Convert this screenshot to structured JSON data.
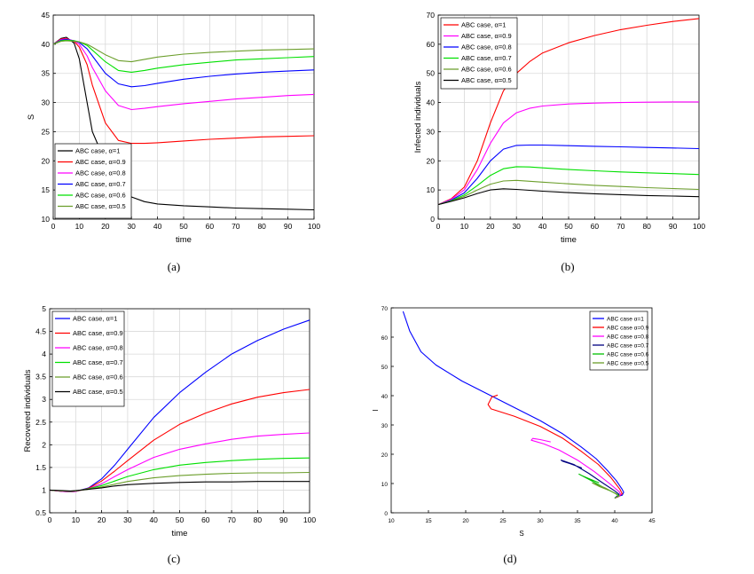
{
  "figure": {
    "panels": [
      {
        "label": "(a)"
      },
      {
        "label": "(b)"
      },
      {
        "label": "(c)"
      },
      {
        "label": "(d)"
      }
    ]
  },
  "chart_data": [
    {
      "type": "line",
      "title": "",
      "xlabel": "time",
      "ylabel": "S",
      "xlim": [
        0,
        100
      ],
      "ylim": [
        10,
        45
      ],
      "xticks": [
        0,
        10,
        20,
        30,
        40,
        50,
        60,
        70,
        80,
        90,
        100
      ],
      "yticks": [
        10,
        15,
        20,
        25,
        30,
        35,
        40,
        45
      ],
      "grid": true,
      "legend_position": "bottom-left",
      "x": [
        0,
        3,
        5,
        8,
        10,
        13,
        15,
        20,
        25,
        30,
        35,
        40,
        50,
        60,
        70,
        80,
        90,
        100
      ],
      "series": [
        {
          "name": "ABC case, α=1",
          "color": "#000000",
          "values": [
            40,
            41,
            41.2,
            40.2,
            37.5,
            30,
            25,
            19.8,
            15.5,
            13.8,
            13,
            12.6,
            12.3,
            12.1,
            11.9,
            11.8,
            11.7,
            11.6
          ]
        },
        {
          "name": "ABC case, α=0.9",
          "color": "#ff0000",
          "values": [
            40,
            40.9,
            41,
            40.5,
            39.5,
            36.5,
            33,
            26.5,
            23.5,
            23,
            23,
            23.1,
            23.4,
            23.7,
            23.9,
            24.1,
            24.2,
            24.3
          ]
        },
        {
          "name": "ABC case, α=0.8",
          "color": "#ff00ff",
          "values": [
            40,
            40.8,
            40.9,
            40.6,
            40,
            38,
            36,
            32,
            29.5,
            28.8,
            29,
            29.3,
            29.8,
            30.2,
            30.6,
            30.9,
            31.2,
            31.4
          ]
        },
        {
          "name": "ABC case, α=0.7",
          "color": "#0000ff",
          "values": [
            40,
            40.7,
            40.8,
            40.6,
            40.3,
            39.2,
            38,
            35,
            33.2,
            32.7,
            32.9,
            33.3,
            34,
            34.5,
            34.9,
            35.2,
            35.4,
            35.6
          ]
        },
        {
          "name": "ABC case, α=0.6",
          "color": "#00e000",
          "values": [
            40,
            40.6,
            40.7,
            40.6,
            40.4,
            39.8,
            39,
            37,
            35.5,
            35.2,
            35.5,
            35.9,
            36.5,
            36.9,
            37.3,
            37.5,
            37.7,
            37.9
          ]
        },
        {
          "name": "ABC case, α=0.5",
          "color": "#6b9e2b",
          "values": [
            40,
            40.5,
            40.6,
            40.5,
            40.4,
            40,
            39.5,
            38.2,
            37.2,
            37,
            37.4,
            37.8,
            38.3,
            38.6,
            38.8,
            39,
            39.1,
            39.2
          ]
        }
      ]
    },
    {
      "type": "line",
      "title": "",
      "xlabel": "time",
      "ylabel": "Infected individuals",
      "xlim": [
        0,
        100
      ],
      "ylim": [
        0,
        70
      ],
      "xticks": [
        0,
        10,
        20,
        30,
        40,
        50,
        60,
        70,
        80,
        90,
        100
      ],
      "yticks": [
        0,
        10,
        20,
        30,
        40,
        50,
        60,
        70
      ],
      "grid": true,
      "legend_position": "top-left",
      "x": [
        0,
        5,
        10,
        15,
        20,
        25,
        30,
        35,
        40,
        50,
        60,
        70,
        80,
        90,
        100
      ],
      "series": [
        {
          "name": "ABC case, α=1",
          "color": "#ff0000",
          "values": [
            5,
            7,
            11,
            20,
            33,
            44,
            50,
            54,
            57,
            60.5,
            63,
            65,
            66.5,
            67.8,
            68.8
          ]
        },
        {
          "name": "ABC case, α=0.9",
          "color": "#ff00ff",
          "values": [
            5,
            6.8,
            10,
            17,
            26,
            33,
            36.5,
            38,
            38.8,
            39.5,
            39.8,
            40,
            40.1,
            40.2,
            40.2
          ]
        },
        {
          "name": "ABC case, α=0.8",
          "color": "#0000ff",
          "values": [
            5,
            6.5,
            9,
            14,
            20,
            24,
            25.3,
            25.4,
            25.4,
            25.2,
            25,
            24.8,
            24.6,
            24.4,
            24.2
          ]
        },
        {
          "name": "ABC case, α=0.7",
          "color": "#00e000",
          "values": [
            5,
            6.3,
            8.3,
            11.5,
            15,
            17.3,
            18,
            17.9,
            17.6,
            17,
            16.6,
            16.2,
            15.9,
            15.6,
            15.3
          ]
        },
        {
          "name": "ABC case, α=0.6",
          "color": "#6b9e2b",
          "values": [
            5,
            6.2,
            7.8,
            10,
            12,
            13.1,
            13.3,
            13,
            12.7,
            12.1,
            11.6,
            11.2,
            10.8,
            10.5,
            10.2
          ]
        },
        {
          "name": "ABC case, α=0.5",
          "color": "#000000",
          "values": [
            5,
            6.1,
            7.3,
            8.8,
            10,
            10.4,
            10.2,
            9.9,
            9.6,
            9.1,
            8.7,
            8.4,
            8.1,
            7.9,
            7.7
          ]
        }
      ]
    },
    {
      "type": "line",
      "title": "",
      "xlabel": "time",
      "ylabel": "Recovered individuals",
      "xlim": [
        0,
        100
      ],
      "ylim": [
        0.5,
        5
      ],
      "xticks": [
        0,
        10,
        20,
        30,
        40,
        50,
        60,
        70,
        80,
        90,
        100
      ],
      "yticks": [
        0.5,
        1,
        1.5,
        2,
        2.5,
        3,
        3.5,
        4,
        4.5,
        5
      ],
      "grid": true,
      "legend_position": "top-left",
      "x": [
        0,
        5,
        8,
        10,
        15,
        20,
        25,
        30,
        40,
        50,
        60,
        70,
        80,
        90,
        100
      ],
      "series": [
        {
          "name": "ABC case, α=1",
          "color": "#0000ff",
          "values": [
            1,
            0.97,
            0.96,
            0.97,
            1.05,
            1.25,
            1.55,
            1.9,
            2.6,
            3.15,
            3.6,
            4,
            4.3,
            4.55,
            4.75
          ]
        },
        {
          "name": "ABC case, α=0.9",
          "color": "#ff0000",
          "values": [
            1,
            0.97,
            0.96,
            0.97,
            1.04,
            1.2,
            1.42,
            1.65,
            2.1,
            2.45,
            2.7,
            2.9,
            3.05,
            3.15,
            3.22
          ]
        },
        {
          "name": "ABC case, α=0.8",
          "color": "#ff00ff",
          "values": [
            1,
            0.97,
            0.96,
            0.97,
            1.03,
            1.14,
            1.3,
            1.45,
            1.72,
            1.9,
            2.02,
            2.12,
            2.19,
            2.23,
            2.26
          ]
        },
        {
          "name": "ABC case, α=0.7",
          "color": "#00e000",
          "values": [
            1,
            0.98,
            0.97,
            0.98,
            1.03,
            1.1,
            1.2,
            1.3,
            1.45,
            1.55,
            1.61,
            1.65,
            1.68,
            1.7,
            1.71
          ]
        },
        {
          "name": "ABC case, α=0.6",
          "color": "#6b9e2b",
          "values": [
            1,
            0.98,
            0.98,
            0.98,
            1.02,
            1.07,
            1.13,
            1.19,
            1.27,
            1.32,
            1.35,
            1.37,
            1.38,
            1.38,
            1.39
          ]
        },
        {
          "name": "ABC case, α=0.5",
          "color": "#000000",
          "values": [
            1,
            0.99,
            0.98,
            0.99,
            1.02,
            1.05,
            1.09,
            1.12,
            1.15,
            1.17,
            1.18,
            1.18,
            1.19,
            1.19,
            1.19
          ]
        }
      ]
    },
    {
      "type": "line",
      "title": "",
      "xlabel": "S",
      "ylabel": "I",
      "xlim": [
        10,
        45
      ],
      "ylim": [
        0,
        70
      ],
      "xticks": [
        10,
        15,
        20,
        25,
        30,
        35,
        40,
        45
      ],
      "yticks": [
        0,
        10,
        20,
        30,
        40,
        50,
        60,
        70
      ],
      "grid": false,
      "legend_position": "top-right",
      "series": [
        {
          "name": "ABC case α=1",
          "color": "#0000ff",
          "x": [
            11.6,
            12.5,
            14,
            16,
            19.5,
            23,
            26.5,
            30,
            33,
            35.5,
            37.5,
            39,
            40.2,
            41,
            41.2,
            41,
            40.2,
            40
          ],
          "y": [
            68.8,
            62,
            55,
            50.5,
            45,
            40.5,
            36,
            31.5,
            27,
            22.5,
            18.5,
            14.5,
            11,
            8,
            7,
            6,
            5.5,
            5
          ]
        },
        {
          "name": "ABC case α=0.9",
          "color": "#ff0000",
          "x": [
            24.3,
            23.5,
            23,
            23.4,
            26.5,
            30,
            33,
            35.5,
            37.8,
            39.5,
            40.7,
            41,
            40.5,
            40
          ],
          "y": [
            40.2,
            39.5,
            37,
            35.5,
            33,
            29.5,
            25.5,
            21,
            16.5,
            12,
            8,
            6.5,
            5.5,
            5
          ]
        },
        {
          "name": "ABC case α=0.8",
          "color": "#ff00ff",
          "x": [
            31.4,
            30,
            29,
            28.8,
            30.5,
            32.5,
            35,
            37.3,
            39.3,
            40.6,
            40.8,
            40.5,
            40
          ],
          "y": [
            24.2,
            25,
            25.4,
            24.8,
            23.5,
            21.5,
            18,
            14,
            10,
            7.2,
            6.3,
            5.5,
            5
          ]
        },
        {
          "name": "ABC case α=0.7",
          "color": "#000080",
          "x": [
            35.6,
            34,
            33,
            32.8,
            34.5,
            36.5,
            38.5,
            40,
            40.6,
            40.3,
            40
          ],
          "y": [
            15.3,
            16.8,
            17.6,
            18,
            16.5,
            13.5,
            10,
            7.5,
            6.3,
            5.6,
            5
          ]
        },
        {
          "name": "ABC case α=0.6",
          "color": "#00c000",
          "x": [
            37.9,
            36.5,
            35.5,
            35.2,
            37,
            38.8,
            40.2,
            40.6,
            40
          ],
          "y": [
            10.2,
            11.7,
            12.8,
            13.2,
            10.8,
            8.2,
            6.5,
            5.8,
            5
          ]
        },
        {
          "name": "ABC case α=0.5",
          "color": "#6b9e2b",
          "x": [
            39.2,
            38,
            37.2,
            37,
            38.8,
            40.2,
            40.5,
            40
          ],
          "y": [
            7.7,
            8.9,
            9.9,
            10.2,
            8.4,
            6.4,
            5.6,
            5
          ]
        }
      ]
    }
  ]
}
